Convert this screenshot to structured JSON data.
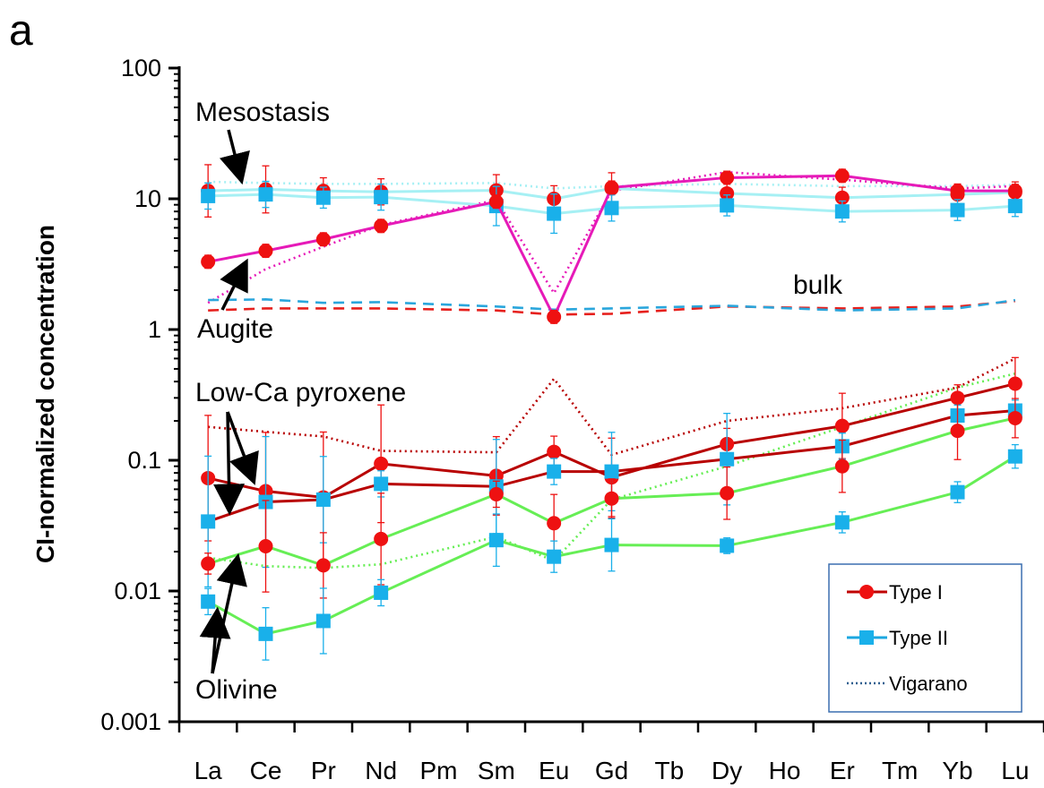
{
  "chart_data": {
    "type": "line",
    "panel_label": "a",
    "ylabel": "CI-normalized concentration",
    "y_scale": "log",
    "ylim": [
      0.001,
      100
    ],
    "y_ticks": [
      "0.001",
      "0.01",
      "0.1",
      "1",
      "10",
      "100"
    ],
    "categories": [
      "La",
      "Ce",
      "Pr",
      "Nd",
      "Pm",
      "Sm",
      "Eu",
      "Gd",
      "Tb",
      "Dy",
      "Ho",
      "Er",
      "Tm",
      "Yb",
      "Lu"
    ],
    "grid": false,
    "legend_position": "bottom-right",
    "legend": [
      {
        "label": "Type I",
        "color": "#cc0000",
        "marker": "circle",
        "style": "solid"
      },
      {
        "label": "Type II",
        "color": "#1ba7e0",
        "marker": "square",
        "style": "solid"
      },
      {
        "label": "Vigarano",
        "color": "#2e5f8f",
        "marker": "none",
        "style": "dotted"
      }
    ],
    "annotations": [
      "Mesostasis",
      "Augite",
      "bulk",
      "Low-Ca pyroxene",
      "Olivine"
    ],
    "colors": {
      "type1_marker": "#ee1111",
      "type1_line": "#c00000",
      "type2_marker": "#19b0ea",
      "mesostasis_line": "#a6f0f4",
      "augite_line": "#e61ab8",
      "lowca_line": "#b80000",
      "olivine_line": "#66ee55",
      "bulk_type1": "#e6201d",
      "bulk_type2": "#2aa6dc"
    },
    "series": [
      {
        "name": "Type I",
        "phase": "Mesostasis",
        "color": "#ee1111",
        "line_color": "#a6f0f4",
        "marker": "circle",
        "style": "solid",
        "x": [
          "La",
          "Ce",
          "Pr",
          "Nd",
          "Sm",
          "Eu",
          "Gd",
          "Dy",
          "Er",
          "Yb",
          "Lu"
        ],
        "y": [
          11.5,
          11.8,
          11.5,
          11.3,
          11.6,
          10.0,
          12.0,
          11.0,
          10.2,
          10.8,
          11.2
        ],
        "err": [
          0.2,
          0.18,
          0.1,
          0.1,
          0.12,
          0.1,
          0.12,
          0.1,
          0.08,
          0.08,
          0.08
        ]
      },
      {
        "name": "Type II",
        "phase": "Mesostasis",
        "color": "#19b0ea",
        "line_color": "#a6f0f4",
        "marker": "square",
        "style": "solid",
        "x": [
          "La",
          "Ce",
          "Pr",
          "Nd",
          "Sm",
          "Eu",
          "Gd",
          "Dy",
          "Er",
          "Yb",
          "Lu"
        ],
        "y": [
          10.5,
          10.8,
          10.2,
          10.3,
          8.8,
          7.7,
          8.5,
          8.9,
          8.0,
          8.2,
          8.8
        ],
        "err": [
          0.1,
          0.1,
          0.08,
          0.1,
          0.15,
          0.15,
          0.1,
          0.08,
          0.08,
          0.08,
          0.08
        ]
      },
      {
        "name": "Vigarano",
        "phase": "Mesostasis",
        "color": "#a6f0f4",
        "marker": "none",
        "style": "dotted",
        "x": [
          "La",
          "Ce",
          "Pr",
          "Nd",
          "Sm",
          "Eu",
          "Gd",
          "Dy",
          "Er",
          "Yb",
          "Lu"
        ],
        "y": [
          13.5,
          13.2,
          13.0,
          13.0,
          13.2,
          12.0,
          12.5,
          13.0,
          12.5,
          12.5,
          12.8
        ]
      },
      {
        "name": "Type I",
        "phase": "Augite",
        "color": "#ee1111",
        "line_color": "#e61ab8",
        "marker": "circle",
        "style": "solid",
        "x": [
          "La",
          "Ce",
          "Pr",
          "Nd",
          "Sm",
          "Eu",
          "Gd",
          "Dy",
          "Er",
          "Yb",
          "Lu"
        ],
        "y": [
          3.3,
          4.0,
          4.9,
          6.2,
          9.5,
          1.25,
          12.2,
          14.5,
          15.0,
          11.5,
          11.5
        ],
        "err": [
          0.05,
          0.05,
          0.05,
          0.05,
          0.05,
          0.05,
          0.05,
          0.05,
          0.05,
          0.05,
          0.05
        ]
      },
      {
        "name": "Vigarano",
        "phase": "Augite",
        "color": "#e61ab8",
        "marker": "none",
        "style": "dotted",
        "x": [
          "La",
          "Ce",
          "Pr",
          "Nd",
          "Sm",
          "Eu",
          "Gd",
          "Dy",
          "Er",
          "Yb",
          "Lu"
        ],
        "y": [
          1.6,
          2.9,
          4.3,
          6.3,
          9.8,
          1.9,
          11.5,
          16.0,
          14.0,
          12.0,
          12.5
        ]
      },
      {
        "name": "Type I",
        "phase": "bulk",
        "color": "#e6201d",
        "marker": "none",
        "style": "dashed",
        "x": [
          "La",
          "Ce",
          "Pr",
          "Nd",
          "Sm",
          "Eu",
          "Gd",
          "Dy",
          "Er",
          "Yb",
          "Lu"
        ],
        "y": [
          1.4,
          1.45,
          1.45,
          1.45,
          1.4,
          1.3,
          1.32,
          1.5,
          1.45,
          1.5,
          1.65
        ]
      },
      {
        "name": "Type II",
        "phase": "bulk",
        "color": "#2aa6dc",
        "marker": "none",
        "style": "dashed",
        "x": [
          "La",
          "Ce",
          "Pr",
          "Nd",
          "Sm",
          "Eu",
          "Gd",
          "Dy",
          "Er",
          "Yb",
          "Lu"
        ],
        "y": [
          1.68,
          1.7,
          1.6,
          1.62,
          1.5,
          1.42,
          1.45,
          1.52,
          1.4,
          1.45,
          1.68
        ]
      },
      {
        "name": "Type I",
        "phase": "Low-Ca pyroxene",
        "color": "#ee1111",
        "line_color": "#b80000",
        "marker": "circle",
        "style": "solid",
        "x": [
          "La",
          "Ce",
          "Pr",
          "Nd",
          "Sm",
          "Eu",
          "Gd",
          "Dy",
          "Er",
          "Yb",
          "Lu"
        ],
        "y": [
          0.073,
          0.058,
          0.052,
          0.094,
          0.076,
          0.116,
          0.074,
          0.133,
          0.183,
          0.3,
          0.385
        ],
        "err": [
          0.48,
          0.45,
          0.5,
          0.45,
          0.3,
          0.12,
          0.3,
          0.12,
          0.25,
          0.1,
          0.2
        ]
      },
      {
        "name": "Type II",
        "phase": "Low-Ca pyroxene",
        "color": "#19b0ea",
        "line_color": "#b80000",
        "marker": "square",
        "style": "solid",
        "x": [
          "La",
          "Ce",
          "Pr",
          "Nd",
          "Sm",
          "Eu",
          "Gd",
          "Dy",
          "Er",
          "Yb",
          "Lu"
        ],
        "y": [
          0.034,
          0.048,
          0.05,
          0.066,
          0.063,
          0.082,
          0.082,
          0.102,
          0.128,
          0.22,
          0.24
        ],
        "err": [
          0.5,
          0.5,
          0.33,
          0.1,
          0.36,
          0.1,
          0.3,
          0.35,
          0.1,
          0.08,
          0.08
        ]
      },
      {
        "name": "Vigarano",
        "phase": "Low-Ca pyroxene",
        "color": "#b80000",
        "marker": "none",
        "style": "dotted",
        "x": [
          "La",
          "Ce",
          "Pr",
          "Nd",
          "Sm",
          "Eu",
          "Gd",
          "Dy",
          "Er",
          "Yb",
          "Lu"
        ],
        "y": [
          0.18,
          0.165,
          0.152,
          0.118,
          0.115,
          0.42,
          0.11,
          0.2,
          0.25,
          0.36,
          0.6
        ]
      },
      {
        "name": "Type I",
        "phase": "Olivine",
        "color": "#ee1111",
        "line_color": "#66ee55",
        "marker": "circle",
        "style": "solid",
        "x": [
          "La",
          "Ce",
          "Pr",
          "Nd",
          "Sm",
          "Eu",
          "Gd",
          "Dy",
          "Er",
          "Yb",
          "Lu"
        ],
        "y": [
          0.0162,
          0.022,
          0.0157,
          0.025,
          0.055,
          0.033,
          0.051,
          0.056,
          0.09,
          0.168,
          0.21
        ],
        "err": [
          0.08,
          0.35,
          0.25,
          0.35,
          0.1,
          0.22,
          0.15,
          0.2,
          0.2,
          0.22,
          0.15
        ]
      },
      {
        "name": "Type II",
        "phase": "Olivine",
        "color": "#19b0ea",
        "line_color": "#66ee55",
        "marker": "square",
        "style": "solid",
        "x": [
          "La",
          "Ce",
          "Pr",
          "Nd",
          "Sm",
          "Eu",
          "Gd",
          "Dy",
          "Er",
          "Yb",
          "Lu"
        ],
        "y": [
          0.0083,
          0.0047,
          0.0059,
          0.0097,
          0.0245,
          0.0183,
          0.0225,
          0.0222,
          0.0335,
          0.057,
          0.107
        ],
        "err": [
          0.1,
          0.2,
          0.25,
          0.1,
          0.2,
          0.12,
          0.2,
          0.06,
          0.08,
          0.08,
          0.09
        ]
      },
      {
        "name": "Vigarano",
        "phase": "Olivine",
        "color": "#66ee55",
        "marker": "none",
        "style": "dotted",
        "x": [
          "La",
          "Ce",
          "Pr",
          "Nd",
          "Sm",
          "Eu",
          "Gd",
          "Dy",
          "Er",
          "Yb",
          "Lu"
        ],
        "y": [
          0.018,
          0.0155,
          0.015,
          0.016,
          0.026,
          0.017,
          0.05,
          0.09,
          0.18,
          0.36,
          0.46
        ]
      }
    ]
  }
}
